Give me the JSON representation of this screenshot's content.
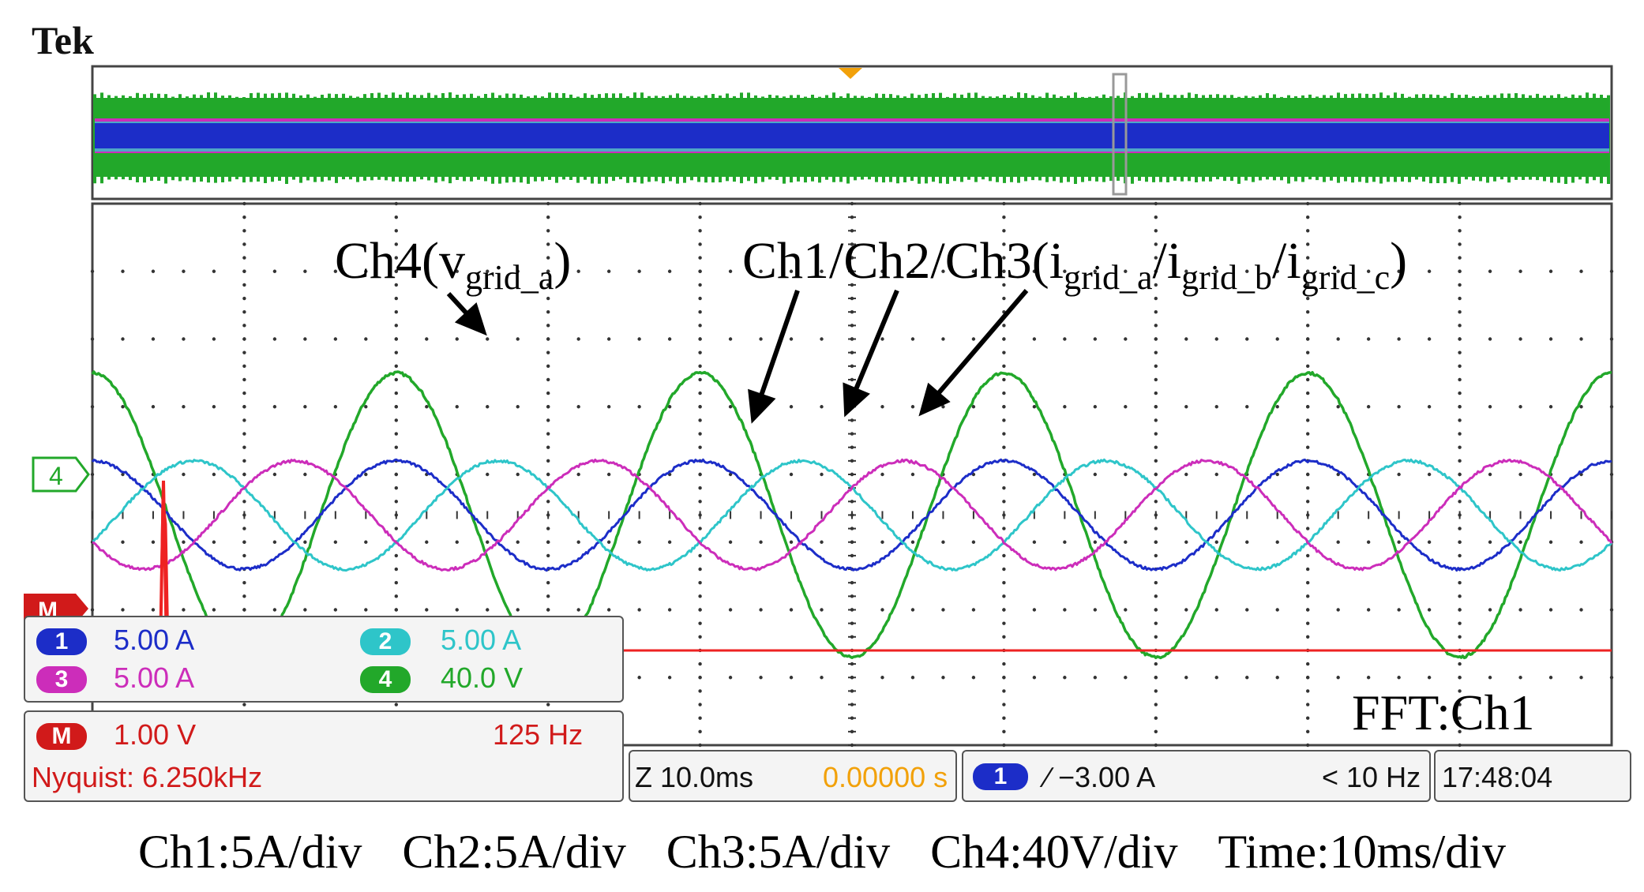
{
  "header": {
    "brand": "Tek"
  },
  "chart_data": {
    "type": "line",
    "title": "",
    "x_unit": "ms",
    "xlim": [
      0,
      100
    ],
    "time_per_div_ms": 10,
    "grid": true,
    "series": [
      {
        "name": "Ch1",
        "channel": 1,
        "color": "#1c2dc8",
        "amplitude_div": 0.8,
        "offset_div": 0.0,
        "frequency_hz": 50,
        "phase_deg": 90,
        "peak_times_ms": [
          5,
          25,
          45,
          65,
          85
        ]
      },
      {
        "name": "Ch2",
        "channel": 2,
        "color": "#2ec5c9",
        "amplitude_div": 0.8,
        "offset_div": 0.0,
        "frequency_hz": 50,
        "phase_deg": -30,
        "peak_times_ms": [
          11.7,
          31.7,
          51.7,
          71.7,
          91.7
        ]
      },
      {
        "name": "Ch3",
        "channel": 3,
        "color": "#cc2dba",
        "amplitude_div": 0.8,
        "offset_div": 0.0,
        "frequency_hz": 50,
        "phase_deg": 210,
        "peak_times_ms": [
          18.3,
          38.3,
          58.3,
          78.3,
          98.3
        ]
      },
      {
        "name": "Ch4",
        "channel": 4,
        "color": "#22a82a",
        "amplitude_div": 2.1,
        "offset_div": 0.0,
        "frequency_hz": 50,
        "phase_deg": 90,
        "peak_times_ms": [
          5,
          25,
          45,
          65,
          85
        ]
      },
      {
        "name": "M",
        "channel": "M",
        "color": "#ee2222",
        "level_div": -2.0,
        "note": "FFT of Ch1, spike near 50 Hz"
      }
    ],
    "annotations": {
      "ch4_label": "Ch4(v",
      "ch4_sub": "grid_a",
      "ch4_close": ")",
      "currents_label": "Ch1/Ch2/Ch3(i",
      "currents_sub_a": "grid_a",
      "currents_sub_b": "grid_b",
      "currents_sub_c": "grid_c",
      "slash": "/",
      "close_paren": ")",
      "fft_label": "FFT:Ch1"
    }
  },
  "readouts": {
    "ch1_badge": "1",
    "ch1_scale": "5.00 A",
    "ch2_badge": "2",
    "ch2_scale": "5.00 A",
    "ch3_badge": "3",
    "ch3_scale": "5.00 A",
    "ch4_badge": "4",
    "ch4_scale": "40.0 V",
    "math_badge": "M",
    "math_scale": "1.00 V",
    "math_freq": "125 Hz",
    "nyquist": "Nyquist: 6.250kHz",
    "zoom_time": "Z 10.0ms",
    "trigger_pos": "0.00000 s",
    "trig_badge": "1",
    "trig_level": "∕ −3.00 A",
    "trig_freq": "< 10 Hz",
    "clock": "17:48:04",
    "ch4_marker": "4",
    "m_marker": "M"
  },
  "caption": {
    "ch1": "Ch1:5A/div",
    "ch2": "Ch2:5A/div",
    "ch3": "Ch3:5A/div",
    "ch4": "Ch4:40V/div",
    "time": "Time:10ms/div"
  },
  "colors": {
    "ch1": "#1c2dc8",
    "ch2": "#2ec5c9",
    "ch3": "#cc2dba",
    "ch4": "#22a82a",
    "math": "#ee2222",
    "trigger_pos": "#f2a10a"
  }
}
